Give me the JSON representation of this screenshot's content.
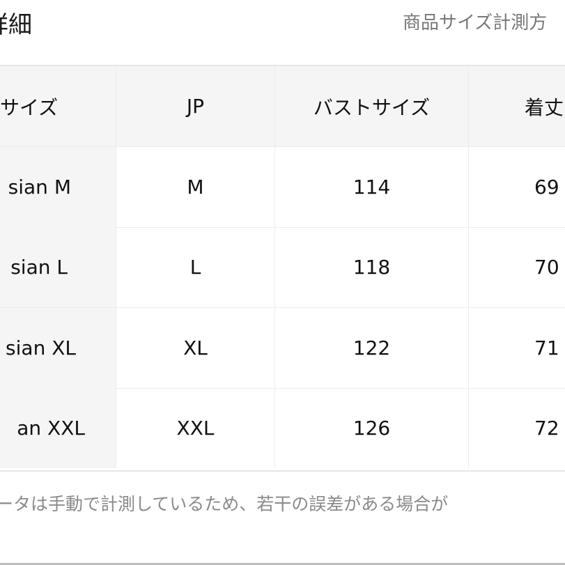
{
  "header": {
    "title": "詳細",
    "subtitle": "商品サイズ計測方"
  },
  "table": {
    "columns": [
      "サイズ",
      "JP",
      "バストサイズ",
      "着丈"
    ],
    "rows": [
      [
        "sian M",
        "M",
        "114",
        "69"
      ],
      [
        "sian L",
        "L",
        "118",
        "70"
      ],
      [
        "sian XL",
        "XL",
        "122",
        "71"
      ],
      [
        "an XXL",
        "XXL",
        "126",
        "72"
      ]
    ]
  },
  "note": "ータは手動で計測しているため、若干の誤差がある場合が"
}
